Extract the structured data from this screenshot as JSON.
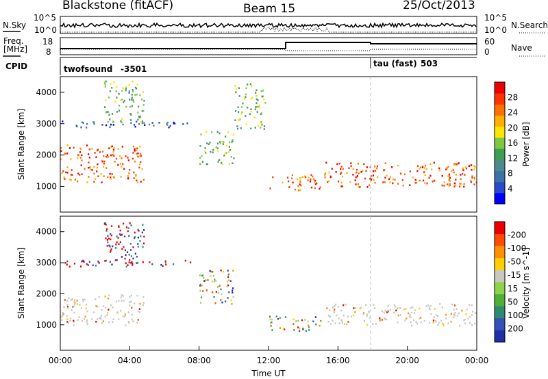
{
  "header": {
    "station": "Blackstone (fitACF)",
    "beam": "Beam 15",
    "date": "25/Oct/2013"
  },
  "nsky_panel": {
    "left_label": "N.Sky",
    "right_label": "N.Search",
    "y_ticks_left": [
      "10^5",
      "10^0"
    ],
    "y_ticks_right": [
      "10^5",
      "10^0"
    ]
  },
  "freq_panel": {
    "left_label_top": "Freq.",
    "left_label_bottom": "[MHz]",
    "right_label": "Nave",
    "y_ticks_left": [
      "18",
      "8"
    ],
    "y_ticks_right": [
      "60",
      "0"
    ]
  },
  "cpid_panel": {
    "label": "CPID",
    "segments": [
      {
        "name": "twofsound",
        "id": "-3501"
      },
      {
        "name": "tau (fast)",
        "id": "503"
      }
    ]
  },
  "x_axis": {
    "label": "Time UT",
    "ticks": [
      "00:00",
      "04:00",
      "08:00",
      "12:00",
      "16:00",
      "20:00",
      "00:00"
    ]
  },
  "chart_data": [
    {
      "type": "heatmap",
      "title": "",
      "xlabel": "Time UT",
      "ylabel": "Slant Range [km]",
      "y_ticks": [
        1000,
        2000,
        3000,
        4000
      ],
      "ylim": [
        180,
        4500
      ],
      "xlim_hours": [
        0,
        24
      ],
      "colorbar": {
        "label": "Power [dB]",
        "ticks": [
          "4",
          "8",
          "12",
          "16",
          "20",
          "24",
          "28"
        ],
        "colors": [
          "#0000ff",
          "#2a4bc8",
          "#3b73a8",
          "#4f8a8b",
          "#3f9d54",
          "#7ec843",
          "#ffe600",
          "#ffb000",
          "#ff7000",
          "#ff3300",
          "#ee0000"
        ]
      },
      "echo_regions": [
        {
          "t_start": 0.0,
          "t_end": 4.8,
          "r_start": 1150,
          "r_end": 2350,
          "level": "high"
        },
        {
          "t_start": 0.0,
          "t_end": 7.5,
          "r_start": 2900,
          "r_end": 3100,
          "level": "low"
        },
        {
          "t_start": 2.5,
          "t_end": 4.8,
          "r_start": 3000,
          "r_end": 4400,
          "level": "mid"
        },
        {
          "t_start": 8.0,
          "t_end": 10.0,
          "r_start": 1700,
          "r_end": 2800,
          "level": "mid"
        },
        {
          "t_start": 10.0,
          "t_end": 11.8,
          "r_start": 2800,
          "r_end": 4300,
          "level": "mid"
        },
        {
          "t_start": 12.0,
          "t_end": 15.0,
          "r_start": 900,
          "r_end": 1400,
          "level": "high"
        },
        {
          "t_start": 15.2,
          "t_end": 24.0,
          "r_start": 1000,
          "r_end": 1800,
          "level": "high"
        }
      ]
    },
    {
      "type": "heatmap",
      "title": "",
      "xlabel": "Time UT",
      "ylabel": "Slant Range [km]",
      "y_ticks": [
        1000,
        2000,
        3000,
        4000
      ],
      "ylim": [
        180,
        4500
      ],
      "xlim_hours": [
        0,
        24
      ],
      "colorbar": {
        "label": "Velocity [m s^-1]",
        "ticks": [
          "200",
          "100",
          "50",
          "15",
          "-15",
          "-50",
          "-100",
          "-200"
        ],
        "colors": [
          "#1f2fa8",
          "#3550b8",
          "#2f8a72",
          "#4fb035",
          "#8ed24a",
          "#c8c8c0",
          "#ffd000",
          "#ff9000",
          "#ff4c00",
          "#ee0000"
        ]
      },
      "echo_regions": [
        {
          "t_start": 0.0,
          "t_end": 4.8,
          "r_start": 1000,
          "r_end": 2000,
          "level": "ground"
        },
        {
          "t_start": 0.0,
          "t_end": 7.5,
          "r_start": 2900,
          "r_end": 3100,
          "level": "negative"
        },
        {
          "t_start": 2.5,
          "t_end": 4.8,
          "r_start": 3000,
          "r_end": 4400,
          "level": "negative"
        },
        {
          "t_start": 8.0,
          "t_end": 10.0,
          "r_start": 1700,
          "r_end": 2800,
          "level": "mixed"
        },
        {
          "t_start": 12.0,
          "t_end": 15.0,
          "r_start": 800,
          "r_end": 1300,
          "level": "mixed"
        },
        {
          "t_start": 15.2,
          "t_end": 24.0,
          "r_start": 1000,
          "r_end": 1700,
          "level": "ground"
        }
      ]
    }
  ],
  "colors": {
    "axis": "#000000",
    "background": "#ffffff",
    "ground_scatter": "#c0c0b8"
  }
}
